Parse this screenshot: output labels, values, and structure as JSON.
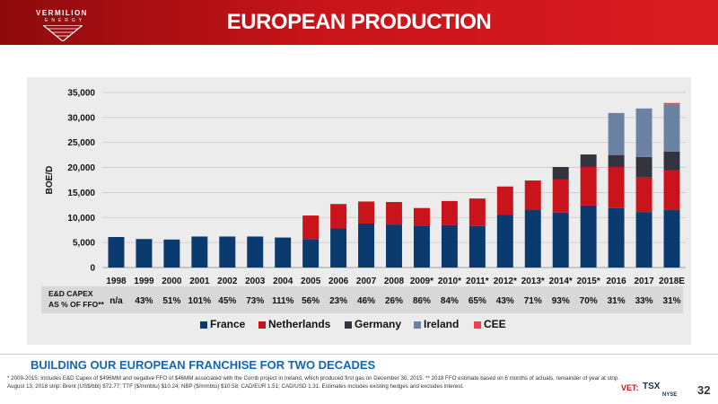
{
  "header": {
    "logo_name": "VERMILION",
    "logo_sub": "ENERGY",
    "title": "EUROPEAN PRODUCTION"
  },
  "colors": {
    "France": "#0b3a6e",
    "Netherlands": "#c8141a",
    "Germany": "#33343e",
    "Ireland": "#6c82a3",
    "CEE": "#e8444a"
  },
  "chart_data": {
    "type": "bar",
    "stacked": true,
    "ylabel": "BOE/D",
    "ylim": [
      0,
      35000
    ],
    "yticks": [
      "0",
      "5,000",
      "10,000",
      "15,000",
      "20,000",
      "25,000",
      "30,000",
      "35,000"
    ],
    "ytick_values": [
      0,
      5000,
      10000,
      15000,
      20000,
      25000,
      30000,
      35000
    ],
    "grid": true,
    "legend_position": "bottom",
    "categories": [
      "1998",
      "1999",
      "2000",
      "2001",
      "2002",
      "2003",
      "2004",
      "2005",
      "2006",
      "2007",
      "2008",
      "2009*",
      "2010*",
      "2011*",
      "2012*",
      "2013*",
      "2014*",
      "2015*",
      "2016",
      "2017",
      "2018E"
    ],
    "series": [
      {
        "name": "France",
        "values": [
          6100,
          5700,
          5600,
          6200,
          6200,
          6200,
          6000,
          5700,
          7800,
          8800,
          8600,
          8400,
          8500,
          8300,
          10500,
          11600,
          11000,
          12400,
          11900,
          11100,
          11500
        ]
      },
      {
        "name": "Netherlands",
        "values": [
          0,
          0,
          0,
          0,
          0,
          0,
          0,
          4700,
          4900,
          4400,
          4500,
          3500,
          4800,
          5500,
          5700,
          5800,
          6600,
          7700,
          8200,
          6900,
          7900
        ]
      },
      {
        "name": "Germany",
        "values": [
          0,
          0,
          0,
          0,
          0,
          0,
          0,
          0,
          0,
          0,
          0,
          0,
          0,
          0,
          0,
          0,
          2500,
          2500,
          2400,
          4100,
          3800
        ]
      },
      {
        "name": "Ireland",
        "values": [
          0,
          0,
          0,
          0,
          0,
          0,
          0,
          0,
          0,
          0,
          0,
          0,
          0,
          0,
          0,
          0,
          0,
          0,
          8400,
          9700,
          9400
        ]
      },
      {
        "name": "CEE",
        "values": [
          0,
          0,
          0,
          0,
          0,
          0,
          0,
          0,
          0,
          0,
          0,
          0,
          0,
          0,
          0,
          0,
          0,
          0,
          0,
          0,
          300
        ]
      }
    ],
    "capex": {
      "label_line1": "E&D CAPEX",
      "label_line2": "AS % OF FFO**",
      "values": [
        "n/a",
        "43%",
        "51%",
        "101%",
        "45%",
        "73%",
        "111%",
        "56%",
        "23%",
        "46%",
        "26%",
        "86%",
        "84%",
        "65%",
        "43%",
        "71%",
        "93%",
        "70%",
        "31%",
        "33%",
        "31%"
      ]
    }
  },
  "subtitle": "BUILDING OUR EUROPEAN FRANCHISE FOR TWO DECADES",
  "footnote": "* 2009-2015: Includes E&D Capex of $496MM and negative FFO of $46MM associated with the Corrib project in Ireland, which produced first gas on December 30, 2015. ** 2018 FFO estimate based on 6 months of actuals, remainder of year at strip. August 13, 2018 strip: Brent (US$/bbl) $72.77; TTF ($/mmbtu) $10.24; NBP ($/mmbtu) $10.58; CAD/EUR 1.51; CAD/USD 1.31.  Estimates includes existing hedges and excludes interest.",
  "tickers": {
    "vet": "VET:",
    "tsx": "TSX",
    "nyse": "NYSE"
  },
  "page_number": "32"
}
